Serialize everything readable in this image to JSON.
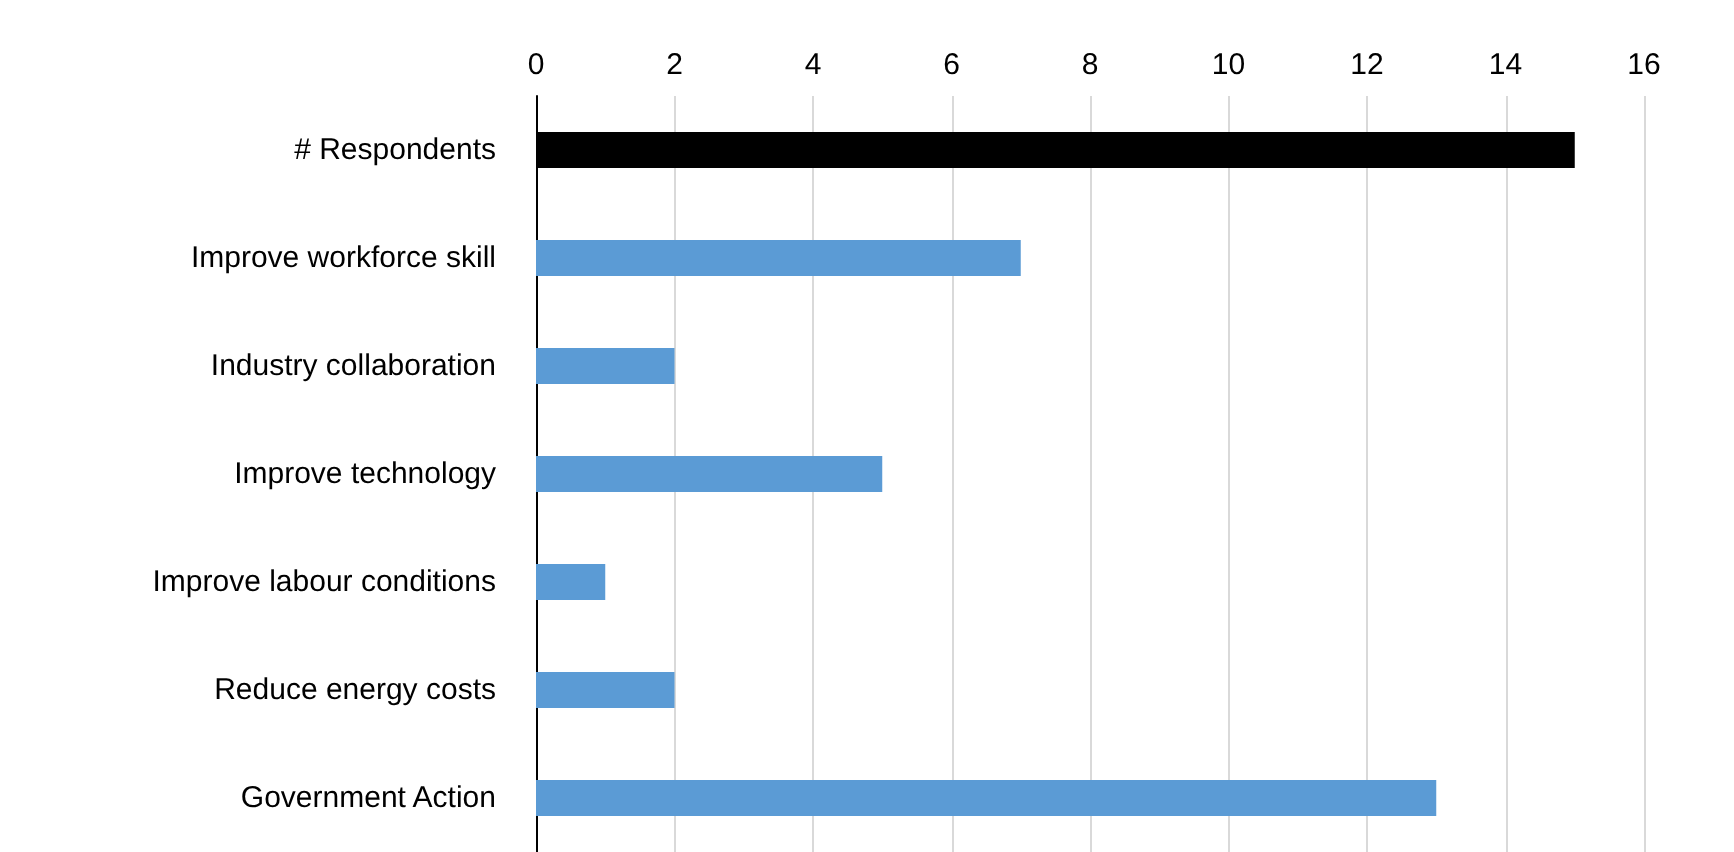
{
  "chart_data": {
    "type": "bar",
    "orientation": "horizontal",
    "categories": [
      "# Respondents",
      "Improve workforce skill",
      "Industry collaboration",
      "Improve technology",
      "Improve labour conditions",
      "Reduce energy costs",
      "Government Action"
    ],
    "values": [
      15,
      7,
      2,
      5,
      1,
      2,
      13
    ],
    "colors": [
      "#000000",
      "#5b9bd5",
      "#5b9bd5",
      "#5b9bd5",
      "#5b9bd5",
      "#5b9bd5",
      "#5b9bd5"
    ],
    "xlim": [
      0,
      16
    ],
    "xticks": [
      0,
      2,
      4,
      6,
      8,
      10,
      12,
      14,
      16
    ],
    "grid": "x"
  }
}
